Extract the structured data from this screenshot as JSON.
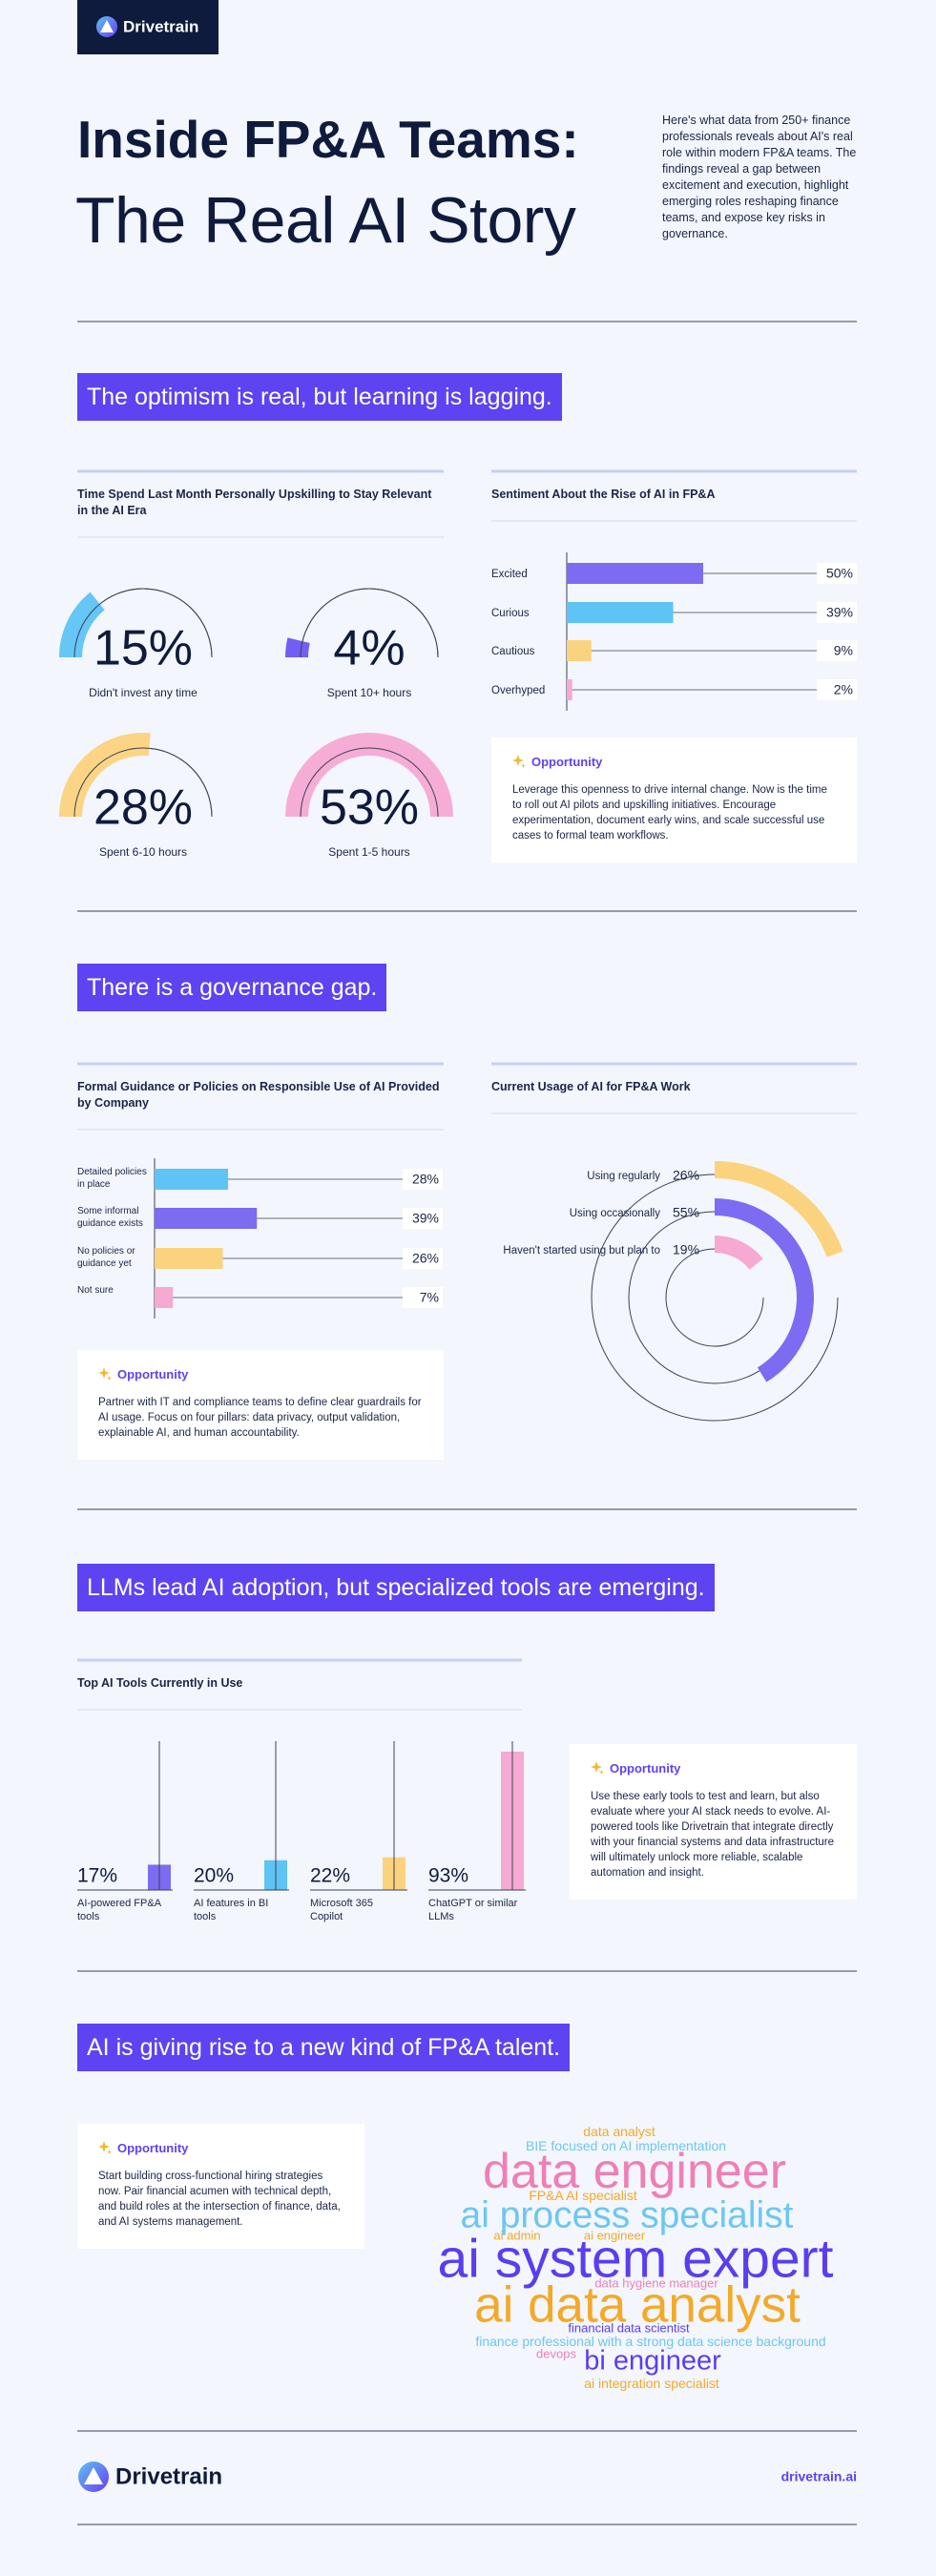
{
  "header": {
    "logo": "Drivetrain",
    "title_line1": "Inside FP&A Teams:",
    "title_line2": "The Real AI Story",
    "intro": "Here's what data from 250+ finance professionals reveals about AI's real role within modern FP&A teams. The findings reveal a gap between excitement and execution, highlight emerging roles reshaping finance teams, and expose key risks in governance."
  },
  "sections": [
    {
      "heading": "The optimism is real, but learning is lagging.",
      "charts": [
        {
          "type": "gauge",
          "title": "Time Spend Last Month Personally Upskilling to Stay Relevant in the AI Era",
          "categories": [
            "Didn't invest any time",
            "Spent 10+ hours",
            "Spent 6-10 hours",
            "Spent 1-5 hours"
          ],
          "values": [
            15,
            4,
            28,
            53
          ],
          "value_labels": [
            "15%",
            "4%",
            "28%",
            "53%"
          ],
          "colors": [
            "#5ec3f5",
            "#6a55f3",
            "#fbd37e",
            "#f5a9d3"
          ]
        },
        {
          "type": "hbar",
          "title": "Sentiment About the Rise of AI in FP&A",
          "categories": [
            "Excited",
            "Curious",
            "Cautious",
            "Overhyped"
          ],
          "values": [
            50,
            39,
            9,
            2
          ],
          "value_labels": [
            "50%",
            "39%",
            "9%",
            "2%"
          ],
          "colors": [
            "#7b6cf2",
            "#5ec3f5",
            "#fbd37e",
            "#f5a9d3"
          ]
        }
      ],
      "opportunity": {
        "label": "Opportunity",
        "text": "Leverage this openness to drive internal change. Now is the time to roll out AI pilots and upskilling initiatives. Encourage experimentation, document early wins, and scale successful use cases to formal team workflows."
      }
    },
    {
      "heading": "There is a governance gap.",
      "charts": [
        {
          "type": "hbar",
          "title": "Formal Guidance or Policies on Responsible Use of AI Provided by Company",
          "categories": [
            "Detailed policies in place",
            "Some informal guidance exists",
            "No policies or guidance yet",
            "Not sure"
          ],
          "values": [
            28,
            39,
            26,
            7
          ],
          "value_labels": [
            "28%",
            "39%",
            "26%",
            "7%"
          ],
          "colors": [
            "#5ec3f5",
            "#7b6cf2",
            "#fbd37e",
            "#f5a9d3"
          ]
        },
        {
          "type": "radial",
          "title": "Current Usage of AI for FP&A Work",
          "categories": [
            "Using regularly",
            "Using occasionally",
            "Haven't started using but plan to"
          ],
          "values": [
            26,
            55,
            19
          ],
          "value_labels": [
            "26%",
            "55%",
            "19%"
          ],
          "colors": [
            "#fbd37e",
            "#7b6cf2",
            "#f5a9d3"
          ]
        }
      ],
      "opportunity": {
        "label": "Opportunity",
        "text": "Partner with IT and compliance teams to define clear guardrails for AI usage. Focus on four pillars: data privacy, output validation, explainable AI, and human accountability."
      }
    },
    {
      "heading": "LLMs lead AI adoption, but specialized tools are emerging.",
      "charts": [
        {
          "type": "column",
          "title": "Top AI Tools Currently in Use",
          "categories": [
            "AI-powered FP&A tools",
            "AI features in BI tools",
            "Microsoft 365 Copilot",
            "ChatGPT or similar LLMs"
          ],
          "values": [
            17,
            20,
            22,
            93
          ],
          "value_labels": [
            "17%",
            "20%",
            "22%",
            "93%"
          ],
          "colors": [
            "#7b6cf2",
            "#5ec3f5",
            "#fbd37e",
            "#f5a9d3"
          ]
        }
      ],
      "opportunity": {
        "label": "Opportunity",
        "text": "Use these early tools to test and learn, but also evaluate where your AI stack needs to evolve. AI-powered tools like Drivetrain that integrate directly with your financial systems and data infrastructure will ultimately unlock more reliable, scalable automation and insight."
      }
    },
    {
      "heading": "AI is giving rise to a new kind of FP&A talent.",
      "opportunity": {
        "label": "Opportunity",
        "text": "Start building cross-functional hiring strategies now. Pair financial acumen with technical depth, and build roles at the intersection of finance, data, and AI systems management."
      },
      "word_cloud": [
        "data analyst",
        "BIE focused on AI implementation",
        "data engineer",
        "FP&A AI specialist",
        "ai process specialist",
        "ai admin",
        "ai engineer",
        "ai system expert",
        "data hygiene manager",
        "ai data analyst",
        "financial data scientist",
        "finance professional with a strong data science background",
        "devops",
        "bi engineer",
        "ai integration specialist"
      ]
    }
  ],
  "footer": {
    "logo": "Drivetrain",
    "url": "drivetrain.ai"
  }
}
